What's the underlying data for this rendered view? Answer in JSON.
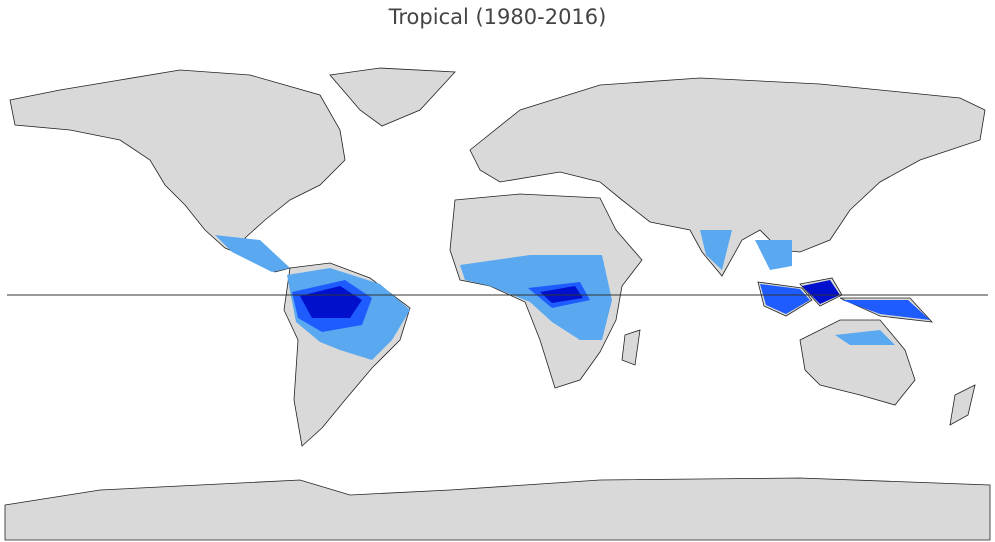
{
  "title": "Tropical (1980-2016)"
}
